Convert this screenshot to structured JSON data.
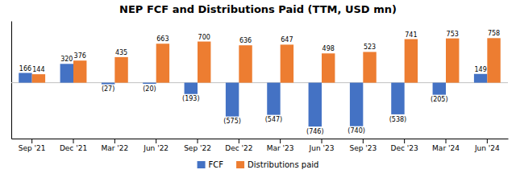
{
  "chart_data": {
    "type": "bar",
    "title": "NEP FCF and Distributions Paid (TTM, USD mn)",
    "categories": [
      "Sep '21",
      "Dec '21",
      "Mar '22",
      "Jun '22",
      "Sep '22",
      "Dec '22",
      "Mar '23",
      "Jun '23",
      "Sep '23",
      "Dec '23",
      "Mar '24",
      "Jun '24"
    ],
    "series": [
      {
        "name": "FCF",
        "color": "#4472C4",
        "values": [
          166,
          320,
          -27,
          -20,
          -193,
          -575,
          -547,
          -746,
          -740,
          -538,
          -205,
          149
        ],
        "value_labels": [
          "166",
          "320",
          "(27)",
          "(20)",
          "(193)",
          "(575)",
          "(547)",
          "(746)",
          "(740)",
          "(538)",
          "(205)",
          "149"
        ]
      },
      {
        "name": "Distributions paid",
        "color": "#ED7D31",
        "values": [
          144,
          376,
          435,
          663,
          700,
          636,
          647,
          498,
          523,
          741,
          753,
          758
        ]
      }
    ],
    "ylim": [
      -950,
      1050
    ],
    "tick_labels": "x",
    "data_labels": true,
    "legend": "bottom",
    "grid": false
  }
}
